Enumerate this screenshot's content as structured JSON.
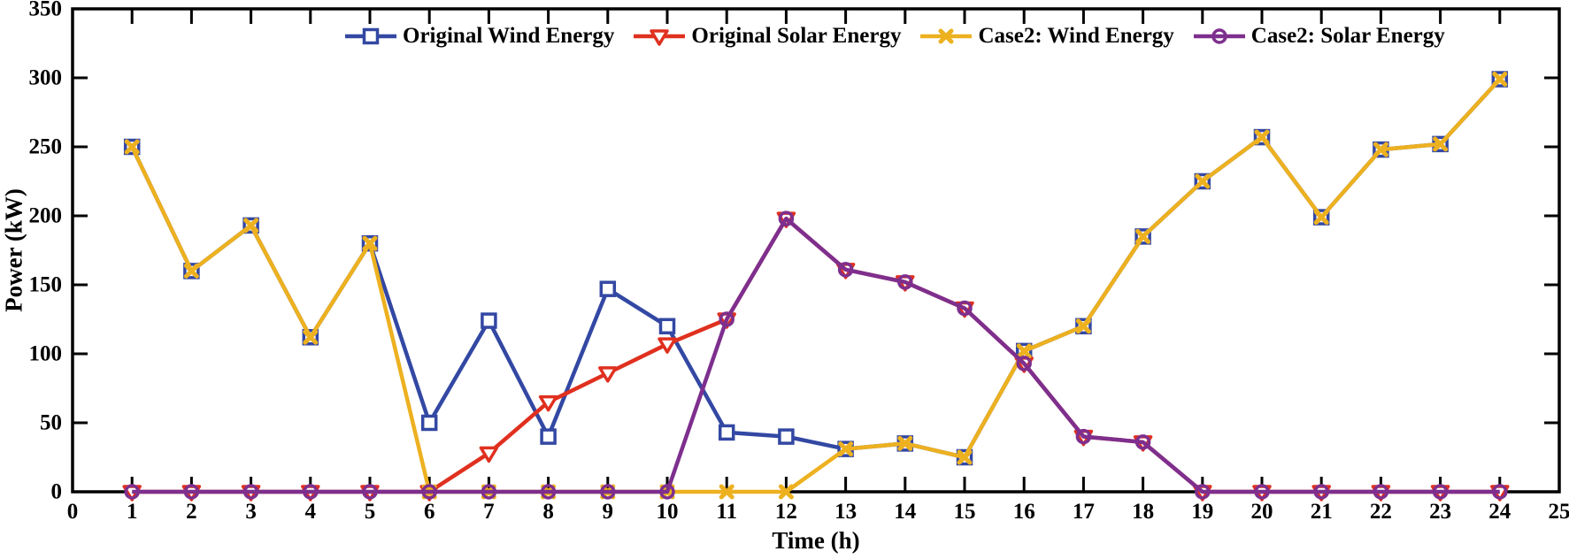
{
  "chart_data": {
    "type": "line",
    "title": "",
    "xlabel": "Time (h)",
    "ylabel": "Power (kW)",
    "xlim": [
      0,
      25
    ],
    "ylim": [
      0,
      350
    ],
    "x_ticks": [
      0,
      1,
      2,
      3,
      4,
      5,
      6,
      7,
      8,
      9,
      10,
      11,
      12,
      13,
      14,
      15,
      16,
      17,
      18,
      19,
      20,
      21,
      22,
      23,
      24,
      25
    ],
    "y_ticks": [
      0,
      50,
      100,
      150,
      200,
      250,
      300,
      350
    ],
    "grid": false,
    "legend_position": "top",
    "axis_color": "#000000",
    "background": "#FFFFFF",
    "x": [
      1,
      2,
      3,
      4,
      5,
      6,
      7,
      8,
      9,
      10,
      11,
      12,
      13,
      14,
      15,
      16,
      17,
      18,
      19,
      20,
      21,
      22,
      23,
      24
    ],
    "series": [
      {
        "name": "Original Wind Energy",
        "color": "#3348A3",
        "marker": "square",
        "values": [
          250,
          160,
          193,
          112,
          180,
          50,
          124,
          40,
          147,
          120,
          43,
          40,
          31,
          35,
          25,
          102,
          120,
          185,
          225,
          257,
          199,
          248,
          252,
          299
        ]
      },
      {
        "name": "Original Solar Energy",
        "color": "#E0301F",
        "marker": "triangle-down",
        "values": [
          0,
          0,
          0,
          0,
          0,
          0,
          28,
          65,
          86,
          107,
          125,
          198,
          161,
          152,
          133,
          93,
          40,
          36,
          0,
          0,
          0,
          0,
          0,
          0
        ]
      },
      {
        "name": "Case2: Wind Energy",
        "color": "#EDB120",
        "marker": "x",
        "values": [
          250,
          160,
          193,
          112,
          180,
          0,
          0,
          0,
          0,
          0,
          0,
          0,
          31,
          35,
          25,
          102,
          120,
          185,
          225,
          257,
          199,
          248,
          252,
          299
        ]
      },
      {
        "name": "Case2: Solar Energy",
        "color": "#7E2F8E",
        "marker": "circle",
        "values": [
          0,
          0,
          0,
          0,
          0,
          0,
          0,
          0,
          0,
          0,
          125,
          198,
          161,
          152,
          133,
          93,
          40,
          36,
          0,
          0,
          0,
          0,
          0,
          0
        ]
      }
    ]
  }
}
